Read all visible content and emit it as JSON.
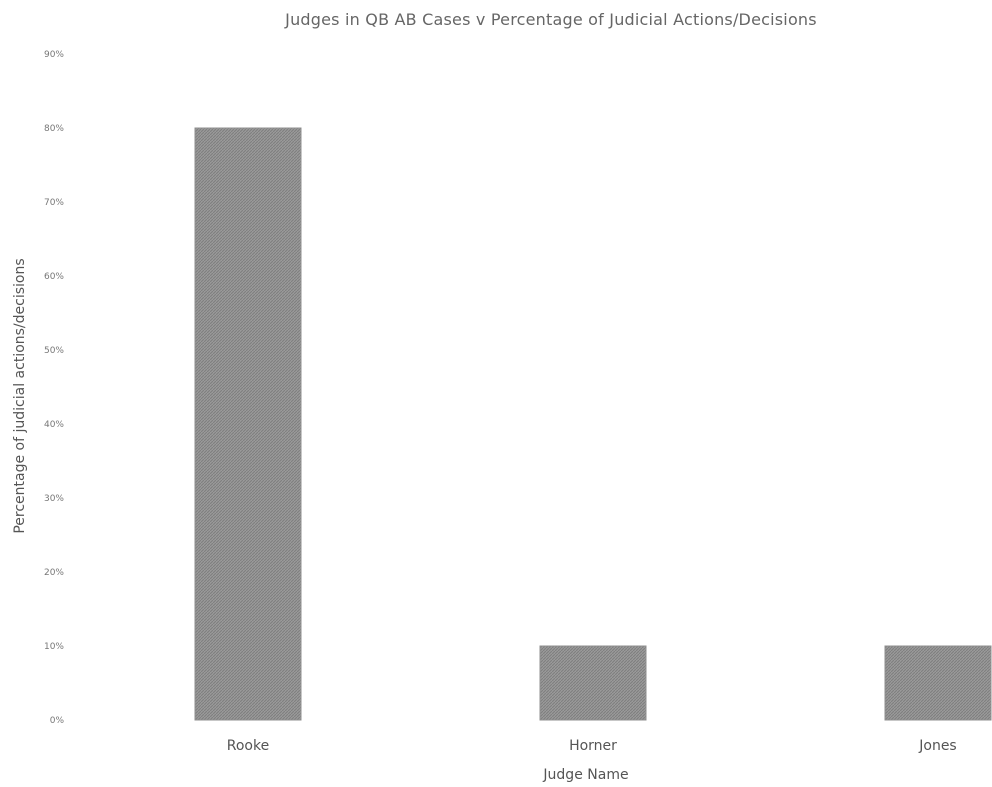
{
  "chart_data": {
    "type": "bar",
    "title": "Judges in QB AB Cases v Percentage of Judicial Actions/Decisions",
    "xlabel": "Judge Name",
    "ylabel": "Percentage of judicial actions/decisions",
    "categories": [
      "Rooke",
      "Horner",
      "Jones"
    ],
    "values": [
      80,
      10,
      10
    ],
    "ylim": [
      0,
      90
    ],
    "yticks": [
      "0%",
      "10%",
      "20%",
      "30%",
      "40%",
      "50%",
      "60%",
      "70%",
      "80%",
      "90%"
    ],
    "grid": false,
    "legend": "none",
    "bar_color": "#8f8f8f"
  }
}
